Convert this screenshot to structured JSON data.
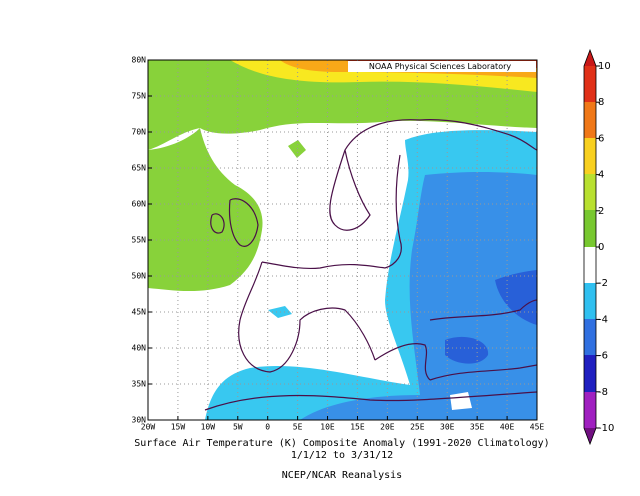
{
  "map": {
    "credit": "NOAA Physical Sciences Laboratory",
    "lat_labels": [
      "80N",
      "75N",
      "70N",
      "65N",
      "60N",
      "55N",
      "50N",
      "45N",
      "40N",
      "35N",
      "30N"
    ],
    "lon_labels": [
      "20W",
      "15W",
      "10W",
      "5W",
      "0",
      "5E",
      "10E",
      "15E",
      "20E",
      "25E",
      "30E",
      "35E",
      "40E",
      "45E"
    ]
  },
  "colorbar": {
    "ticks": [
      10,
      8,
      6,
      4,
      2,
      0,
      -2,
      -4,
      -6,
      -8,
      -10
    ]
  },
  "caption": {
    "line1": "Surface Air Temperature (K) Composite Anomaly (1991-2020 Climatology)",
    "line2": "1/1/12  to 3/31/12",
    "line3": "NCEP/NCAR Reanalysis"
  }
}
